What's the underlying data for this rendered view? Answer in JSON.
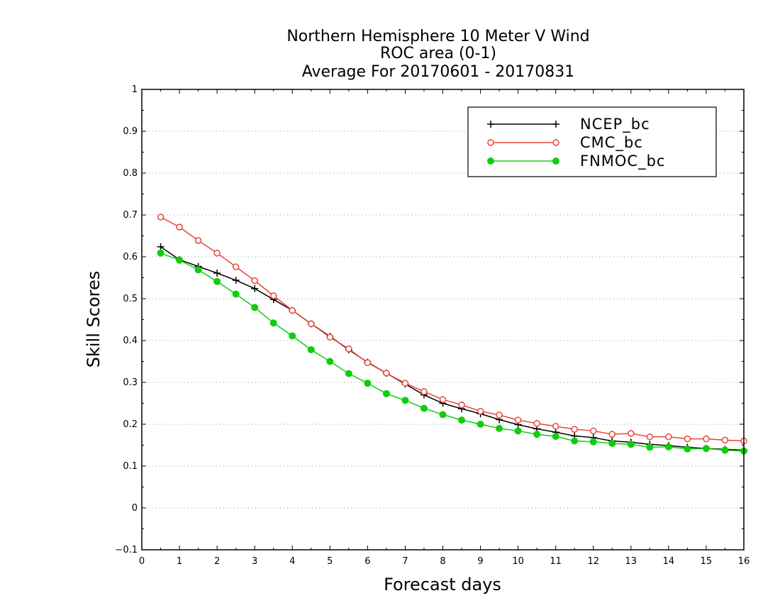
{
  "chart_data": {
    "type": "line",
    "title_lines": [
      "Northern Hemisphere 10 Meter V Wind",
      "ROC area (0-1)",
      "Average For 20170601 - 20170831"
    ],
    "xlabel": "Forecast days",
    "ylabel": "Skill Scores",
    "xlim": [
      0,
      16
    ],
    "ylim": [
      -0.1,
      1
    ],
    "x_ticks": [
      0,
      1,
      2,
      3,
      4,
      5,
      6,
      7,
      8,
      9,
      10,
      11,
      12,
      13,
      14,
      15,
      16
    ],
    "x_tick_labels": [
      "0",
      "1",
      "2",
      "3",
      "4",
      "5",
      "6",
      "7",
      "8",
      "9",
      "10",
      "11",
      "12",
      "13",
      "14",
      "15",
      "16"
    ],
    "y_ticks": [
      -0.1,
      0,
      0.1,
      0.2,
      0.3,
      0.4,
      0.5,
      0.6,
      0.7,
      0.8,
      0.9,
      1
    ],
    "y_tick_labels": [
      "−0.1",
      "0",
      "0.1",
      "0.2",
      "0.3",
      "0.4",
      "0.5",
      "0.6",
      "0.7",
      "0.8",
      "0.9",
      "1"
    ],
    "grid": true,
    "legend_position": "top-right",
    "x": [
      0.5,
      1,
      1.5,
      2,
      2.5,
      3,
      3.5,
      4,
      4.5,
      5,
      5.5,
      6,
      6.5,
      7,
      7.5,
      8,
      8.5,
      9,
      9.5,
      10,
      10.5,
      11,
      11.5,
      12,
      12.5,
      13,
      13.5,
      14,
      14.5,
      15,
      15.5,
      16
    ],
    "series": [
      {
        "name": "NCEP_bc",
        "color": "#000000",
        "marker": "plus",
        "values": [
          0.624,
          0.593,
          0.577,
          0.561,
          0.544,
          0.524,
          0.498,
          0.472,
          0.44,
          0.41,
          0.378,
          0.348,
          0.322,
          0.296,
          0.27,
          0.25,
          0.237,
          0.225,
          0.211,
          0.199,
          0.189,
          0.181,
          0.172,
          0.168,
          0.16,
          0.157,
          0.152,
          0.149,
          0.145,
          0.142,
          0.14,
          0.138
        ]
      },
      {
        "name": "CMC_bc",
        "color": "#e8453c",
        "marker": "open-circle",
        "values": [
          0.695,
          0.671,
          0.639,
          0.609,
          0.576,
          0.543,
          0.507,
          0.472,
          0.44,
          0.408,
          0.38,
          0.347,
          0.322,
          0.298,
          0.278,
          0.259,
          0.246,
          0.231,
          0.222,
          0.21,
          0.202,
          0.195,
          0.188,
          0.184,
          0.176,
          0.178,
          0.17,
          0.17,
          0.165,
          0.165,
          0.162,
          0.16
        ]
      },
      {
        "name": "FNMOC_bc",
        "color": "#11cc11",
        "marker": "filled-circle",
        "values": [
          0.609,
          0.592,
          0.569,
          0.541,
          0.511,
          0.479,
          0.442,
          0.411,
          0.378,
          0.35,
          0.321,
          0.298,
          0.273,
          0.257,
          0.238,
          0.223,
          0.21,
          0.2,
          0.19,
          0.184,
          0.176,
          0.171,
          0.16,
          0.158,
          0.154,
          0.152,
          0.145,
          0.146,
          0.141,
          0.142,
          0.138,
          0.136
        ]
      }
    ]
  }
}
